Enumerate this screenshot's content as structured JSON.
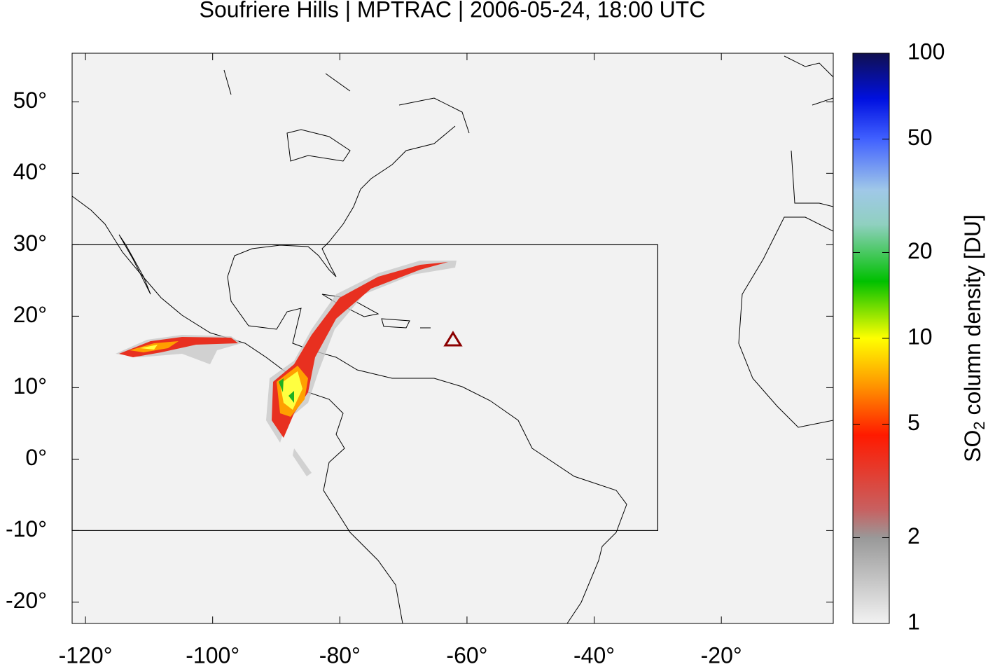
{
  "chart_data": {
    "type": "map",
    "title": "Soufriere Hills | MPTRAC | 2006-05-24, 18:00 UTC",
    "xlim": [
      -122.1,
      -2.4
    ],
    "ylim": [
      -23,
      56.8
    ],
    "xticks": [
      {
        "value": -120,
        "label": "-120°"
      },
      {
        "value": -100,
        "label": "-100°"
      },
      {
        "value": -80,
        "label": "-80°"
      },
      {
        "value": -60,
        "label": "-60°"
      },
      {
        "value": -40,
        "label": "-40°"
      },
      {
        "value": -20,
        "label": "-20°"
      }
    ],
    "yticks": [
      {
        "value": -20,
        "label": "-20°"
      },
      {
        "value": -10,
        "label": "-10°"
      },
      {
        "value": 0,
        "label": "0°"
      },
      {
        "value": 10,
        "label": "10°"
      },
      {
        "value": 20,
        "label": "20°"
      },
      {
        "value": 30,
        "label": "30°"
      },
      {
        "value": 40,
        "label": "40°"
      },
      {
        "value": 50,
        "label": "50°"
      }
    ],
    "region": {
      "lon": [
        -122.1,
        -30
      ],
      "lat": [
        -10,
        30
      ]
    },
    "volcano": {
      "lon": -62.2,
      "lat": 16.7,
      "color": "#8b0000"
    },
    "colorbar": {
      "label_main": "SO",
      "label_sub": "2",
      "label_rest": " column density [DU]",
      "lim": [
        1,
        100
      ],
      "log": true,
      "ticks": [
        1,
        2,
        5,
        10,
        20,
        50,
        100
      ]
    }
  }
}
